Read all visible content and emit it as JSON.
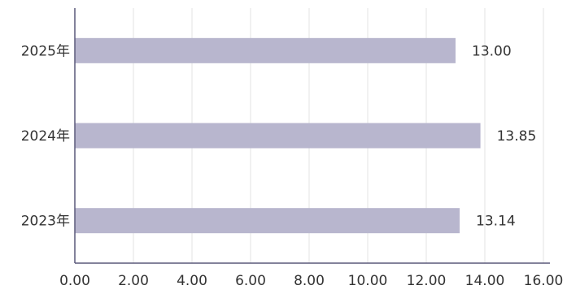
{
  "chart_data": {
    "type": "bar",
    "orientation": "horizontal",
    "categories": [
      "2025年",
      "2024年",
      "2023年"
    ],
    "values": [
      13.0,
      13.85,
      13.14
    ],
    "value_labels": [
      "13.00",
      "13.85",
      "13.14"
    ],
    "title": "",
    "xlabel": "",
    "ylabel": "",
    "xlim": [
      0,
      16
    ],
    "x_ticks": [
      0,
      2,
      4,
      6,
      8,
      10,
      12,
      14,
      16
    ],
    "x_tick_labels": [
      "0.00",
      "2.00",
      "4.00",
      "6.00",
      "8.00",
      "10.00",
      "12.00",
      "14.00",
      "16.00"
    ],
    "grid": "vertical",
    "legend": "none",
    "colors": {
      "bar": "#b8b6ce",
      "axis": "#5a587a",
      "grid": "#e3e3e3",
      "text": "#333333"
    }
  }
}
